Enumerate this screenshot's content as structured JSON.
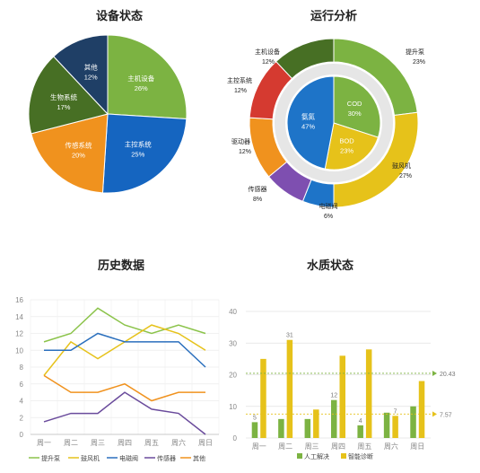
{
  "chart_data": [
    {
      "type": "pie",
      "title": "设备状态",
      "slices": [
        {
          "label": "主机设备",
          "value": 26,
          "color": "#7cb342"
        },
        {
          "label": "主控系统",
          "value": 25,
          "color": "#1565c0"
        },
        {
          "label": "传感系统",
          "value": 20,
          "color": "#f0921e"
        },
        {
          "label": "生物系统",
          "value": 17,
          "color": "#476f24"
        },
        {
          "label": "其他",
          "value": 12,
          "color": "#1f3f66"
        }
      ]
    },
    {
      "type": "donut",
      "title": "运行分析",
      "outer": [
        {
          "label": "提升泵",
          "value": 23,
          "color": "#7cb342"
        },
        {
          "label": "鼓风机",
          "value": 27,
          "color": "#e6c21a"
        },
        {
          "label": "电磁阀",
          "value": 6,
          "color": "#1e74c8"
        },
        {
          "label": "传感器",
          "value": 8,
          "color": "#7e4fb0"
        },
        {
          "label": "驱动器",
          "value": 12,
          "color": "#f0921e"
        },
        {
          "label": "主控系统",
          "value": 12,
          "color": "#d53a30"
        },
        {
          "label": "主机设备",
          "value": 12,
          "color": "#476f24"
        }
      ],
      "inner": [
        {
          "label": "COD",
          "value": 30,
          "color": "#7cb342"
        },
        {
          "label": "BOD",
          "value": 23,
          "color": "#e6c21a"
        },
        {
          "label": "氨氮",
          "value": 47,
          "color": "#1e74c8"
        }
      ]
    },
    {
      "type": "line",
      "title": "历史数据",
      "categories": [
        "周一",
        "周二",
        "周三",
        "周四",
        "周五",
        "周六",
        "周日"
      ],
      "ylim": [
        0,
        16
      ],
      "yticks": [
        0,
        2,
        4,
        6,
        8,
        10,
        12,
        14,
        16
      ],
      "grid": true,
      "legend": "bottom",
      "series": [
        {
          "name": "提升泵",
          "color": "#8bc34a",
          "values": [
            11,
            12,
            15,
            13,
            12,
            13,
            12
          ]
        },
        {
          "name": "鼓风机",
          "color": "#e6c21a",
          "values": [
            7,
            11,
            9,
            11,
            13,
            12,
            10
          ]
        },
        {
          "name": "电磁阀",
          "color": "#2a6fbd",
          "values": [
            10,
            10,
            12,
            11,
            11,
            11,
            8
          ]
        },
        {
          "name": "传感器",
          "color": "#6a4b9c",
          "values": [
            1.5,
            2.5,
            2.5,
            5,
            3,
            2.5,
            0
          ]
        },
        {
          "name": "其他",
          "color": "#f0921e",
          "values": [
            7,
            5,
            5,
            6,
            4,
            5,
            5
          ]
        }
      ]
    },
    {
      "type": "bar",
      "title": "水质状态",
      "categories": [
        "周一",
        "周二",
        "周三",
        "周四",
        "周五",
        "周六",
        "周日"
      ],
      "ylim": [
        0,
        40
      ],
      "yticks": [
        0,
        10,
        20,
        30,
        40
      ],
      "grid": true,
      "legend": "bottom",
      "series": [
        {
          "name": "人工解决",
          "color": "#7cb342",
          "values": [
            5,
            6,
            6,
            12,
            4,
            8,
            10
          ]
        },
        {
          "name": "智能诊断",
          "color": "#e6c21a",
          "values": [
            25,
            31,
            9,
            26,
            28,
            7,
            18
          ]
        }
      ],
      "data_labels": [
        {
          "series": "人工解决",
          "category": "周一",
          "text": "5"
        },
        {
          "series": "智能诊断",
          "category": "周二",
          "text": "31"
        },
        {
          "series": "人工解决",
          "category": "周四",
          "text": "12"
        },
        {
          "series": "人工解决",
          "category": "周五",
          "text": "4"
        },
        {
          "series": "智能诊断",
          "category": "周六",
          "text": "7"
        }
      ],
      "reference_lines": [
        {
          "value": 20.43,
          "label": "20.43",
          "color": "#7cb342"
        },
        {
          "value": 7.57,
          "label": "7.57",
          "color": "#e6c21a"
        }
      ]
    }
  ]
}
